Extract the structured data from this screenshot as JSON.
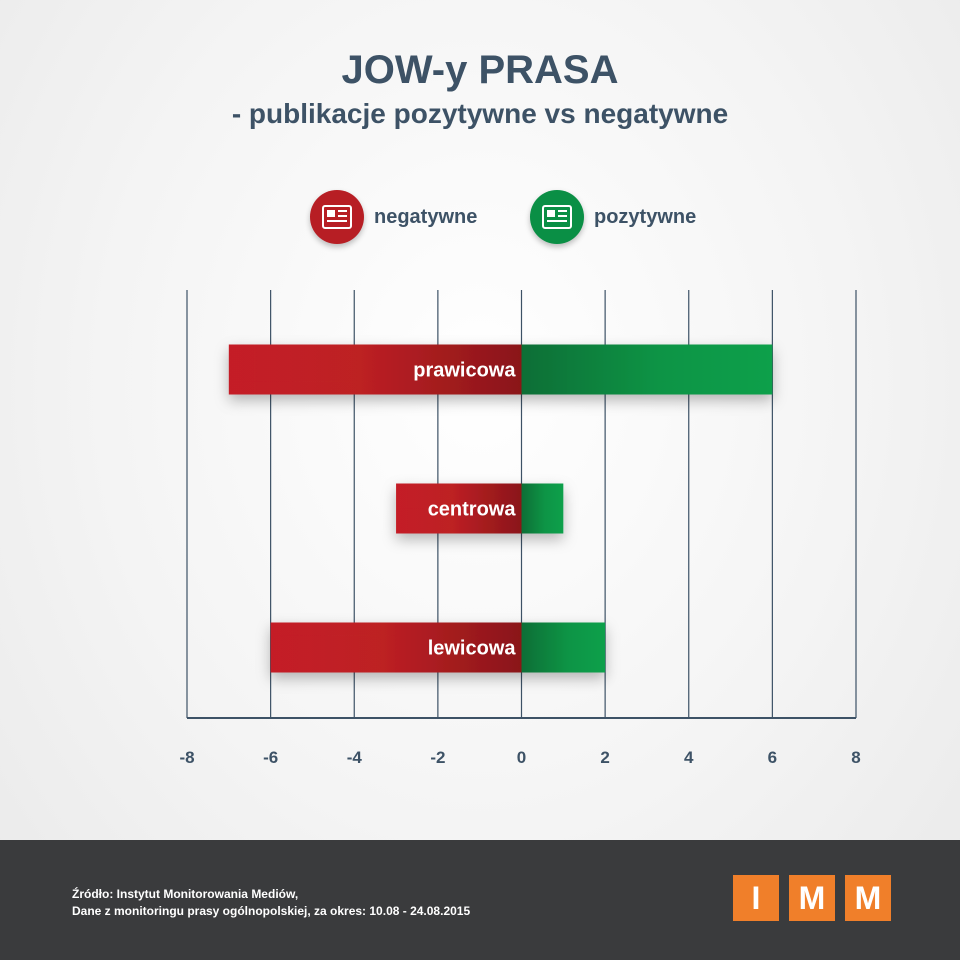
{
  "header": {
    "title": "JOW-y PRASA",
    "subtitle": "- publikacje pozytywne vs negatywne"
  },
  "legend": {
    "negative": {
      "label": "negatywne",
      "color": "#b71e24",
      "icon": "newspaper-icon"
    },
    "positive": {
      "label": "pozytywne",
      "color": "#0a8f45",
      "icon": "newspaper-icon"
    }
  },
  "chart_data": {
    "type": "bar",
    "orientation": "horizontal",
    "stacked": "diverging",
    "categories": [
      "prawicowa",
      "centrowa",
      "lewicowa"
    ],
    "series": [
      {
        "name": "negatywne",
        "values": [
          -7,
          -3,
          -6
        ],
        "color": "#b71e24"
      },
      {
        "name": "pozytywne",
        "values": [
          6,
          1,
          2
        ],
        "color": "#0a8f45"
      }
    ],
    "xlim": [
      -8,
      8
    ],
    "xticks": [
      -8,
      -6,
      -4,
      -2,
      0,
      2,
      4,
      6,
      8
    ],
    "grid": true,
    "legend_position": "top"
  },
  "footer": {
    "source_line1": "Źródło: Instytut Monitorowania Mediów,",
    "source_line2": "Dane z monitoringu prasy ogólnopolskiej, za okres: 10.08 - 24.08.2015",
    "logo_letters": [
      "I",
      "M",
      "M"
    ],
    "logo_color": "#f07f2a"
  }
}
